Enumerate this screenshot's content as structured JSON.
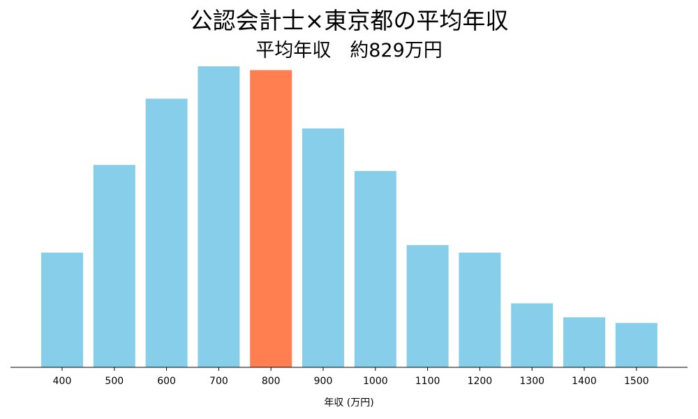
{
  "chart_data": {
    "type": "bar",
    "title": "公認会計士×東京都の平均年収",
    "subtitle": "平均年収　約829万円",
    "xlabel": "年収 (万円)",
    "ylabel": "",
    "categories": [
      "400",
      "500",
      "600",
      "700",
      "800",
      "900",
      "1000",
      "1100",
      "1200",
      "1300",
      "1400",
      "1500"
    ],
    "values": [
      30.5,
      53.8,
      71.4,
      80.0,
      79.0,
      63.5,
      52.2,
      32.5,
      30.5,
      17.0,
      13.3,
      11.8
    ],
    "highlight_category": "800",
    "colors": {
      "bar": "#87CEEB",
      "highlight": "#FF7F50",
      "axis": "#000000"
    },
    "ylim": [
      0,
      80
    ],
    "grid": false,
    "legend": "none"
  }
}
